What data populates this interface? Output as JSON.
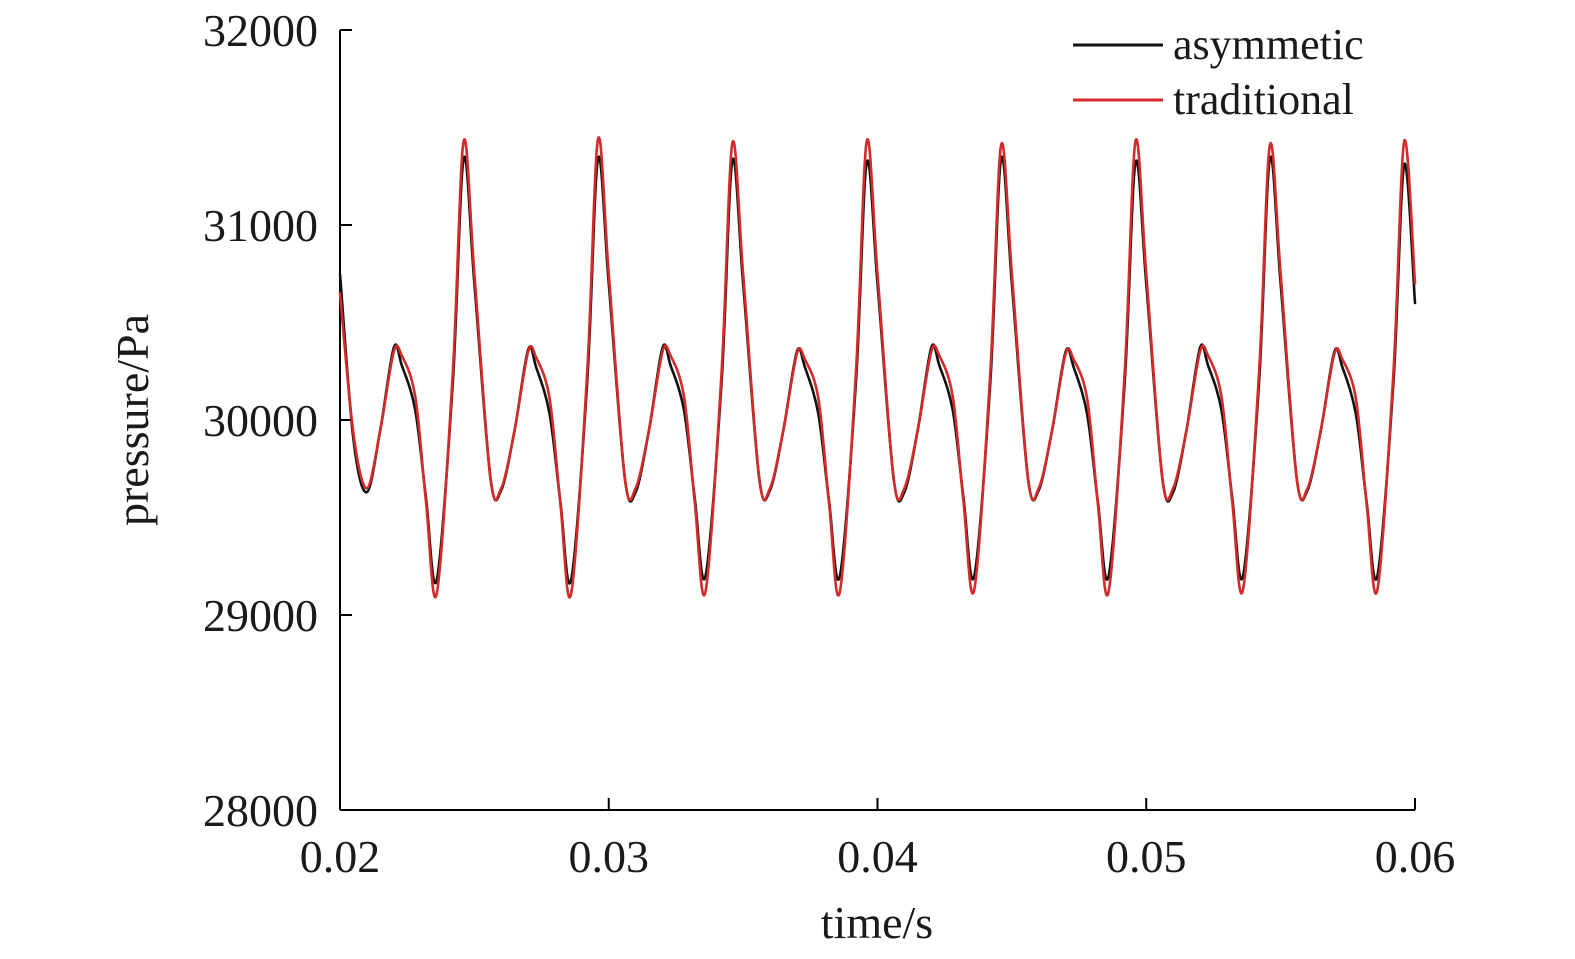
{
  "chart_data": {
    "type": "line",
    "title": "",
    "xlabel": "time/s",
    "ylabel": "pressure/Pa",
    "xlim": [
      0.02,
      0.06
    ],
    "ylim": [
      28000,
      32000
    ],
    "x_ticks": [
      0.02,
      0.03,
      0.04,
      0.05,
      0.06
    ],
    "x_tick_labels": [
      "0.02",
      "0.03",
      "0.04",
      "0.05",
      "0.06"
    ],
    "y_ticks": [
      28000,
      29000,
      30000,
      31000,
      32000
    ],
    "y_tick_labels": [
      "28000",
      "29000",
      "30000",
      "31000",
      "32000"
    ],
    "grid": false,
    "legend_position": "top-right",
    "series": [
      {
        "name": "asymmetic",
        "color": "#111111",
        "x": [
          0.02,
          0.0205,
          0.021,
          0.0215,
          0.022,
          0.0223,
          0.0228,
          0.0232,
          0.0236,
          0.0242,
          0.0246,
          0.025,
          0.0256,
          0.026,
          0.0265,
          0.027,
          0.0273,
          0.0278,
          0.0282,
          0.0286,
          0.0292,
          0.0296,
          0.03,
          0.0306,
          0.031,
          0.0315,
          0.032,
          0.0323,
          0.0328,
          0.0332,
          0.0336,
          0.0342,
          0.0346,
          0.035,
          0.0356,
          0.036,
          0.0365,
          0.037,
          0.0373,
          0.0378,
          0.0382,
          0.0386,
          0.0392,
          0.0396,
          0.04,
          0.0406,
          0.041,
          0.0415,
          0.042,
          0.0423,
          0.0428,
          0.0432,
          0.0436,
          0.0442,
          0.0446,
          0.045,
          0.0456,
          0.046,
          0.0465,
          0.047,
          0.0473,
          0.0478,
          0.0482,
          0.0486,
          0.0492,
          0.0496,
          0.05,
          0.0506,
          0.051,
          0.0515,
          0.052,
          0.0523,
          0.0528,
          0.0532,
          0.0536,
          0.0542,
          0.0546,
          0.055,
          0.0556,
          0.056,
          0.0565,
          0.057,
          0.0573,
          0.0578,
          0.0582,
          0.0586,
          0.0592,
          0.0596,
          0.06
        ],
        "y": [
          30750,
          29900,
          29630,
          29950,
          30370,
          30280,
          30050,
          29600,
          29180,
          30200,
          31340,
          30700,
          29700,
          29640,
          29950,
          30360,
          30270,
          30030,
          29580,
          29180,
          30200,
          31340,
          30700,
          29700,
          29630,
          29950,
          30370,
          30280,
          30050,
          29600,
          29200,
          30200,
          31330,
          30700,
          29700,
          29640,
          29950,
          30350,
          30270,
          30030,
          29580,
          29200,
          30200,
          31320,
          30700,
          29700,
          29630,
          29950,
          30370,
          30280,
          30050,
          29600,
          29200,
          30200,
          31340,
          30700,
          29700,
          29640,
          29950,
          30350,
          30270,
          30030,
          29580,
          29200,
          30200,
          31320,
          30700,
          29700,
          29630,
          29950,
          30370,
          30280,
          30050,
          29600,
          29200,
          30200,
          31340,
          30700,
          29700,
          29640,
          29950,
          30350,
          30270,
          30030,
          29580,
          29200,
          30200,
          31310,
          30600
        ]
      },
      {
        "name": "traditional",
        "color": "#d42a2a",
        "x": [
          0.02,
          0.0205,
          0.021,
          0.0215,
          0.022,
          0.0223,
          0.0228,
          0.0232,
          0.0236,
          0.0242,
          0.0246,
          0.025,
          0.0256,
          0.026,
          0.0265,
          0.027,
          0.0273,
          0.0278,
          0.0282,
          0.0286,
          0.0292,
          0.0296,
          0.03,
          0.0306,
          0.031,
          0.0315,
          0.032,
          0.0323,
          0.0328,
          0.0332,
          0.0336,
          0.0342,
          0.0346,
          0.035,
          0.0356,
          0.036,
          0.0365,
          0.037,
          0.0373,
          0.0378,
          0.0382,
          0.0386,
          0.0392,
          0.0396,
          0.04,
          0.0406,
          0.041,
          0.0415,
          0.042,
          0.0423,
          0.0428,
          0.0432,
          0.0436,
          0.0442,
          0.0446,
          0.045,
          0.0456,
          0.046,
          0.0465,
          0.047,
          0.0473,
          0.0478,
          0.0482,
          0.0486,
          0.0492,
          0.0496,
          0.05,
          0.0506,
          0.051,
          0.0515,
          0.052,
          0.0523,
          0.0528,
          0.0532,
          0.0536,
          0.0542,
          0.0546,
          0.055,
          0.0556,
          0.056,
          0.0565,
          0.057,
          0.0573,
          0.0578,
          0.0582,
          0.0586,
          0.0592,
          0.0596,
          0.06
        ],
        "y": [
          30650,
          29930,
          29650,
          29950,
          30350,
          30330,
          30120,
          29580,
          29110,
          30250,
          31430,
          30750,
          29700,
          29650,
          29950,
          30350,
          30320,
          30110,
          29570,
          29110,
          30250,
          31440,
          30750,
          29700,
          29650,
          29950,
          30350,
          30330,
          30120,
          29580,
          29120,
          30250,
          31420,
          30750,
          29700,
          29650,
          29950,
          30340,
          30310,
          30110,
          29570,
          29120,
          30250,
          31430,
          30750,
          29700,
          29650,
          29950,
          30350,
          30330,
          30120,
          29580,
          29130,
          30250,
          31410,
          30750,
          29700,
          29650,
          29950,
          30340,
          30310,
          30110,
          29570,
          29120,
          30250,
          31430,
          30750,
          29700,
          29650,
          29950,
          30350,
          30330,
          30120,
          29580,
          29130,
          30250,
          31410,
          30750,
          29700,
          29650,
          29950,
          30340,
          30310,
          30110,
          29570,
          29130,
          30250,
          31430,
          30700
        ]
      }
    ]
  }
}
